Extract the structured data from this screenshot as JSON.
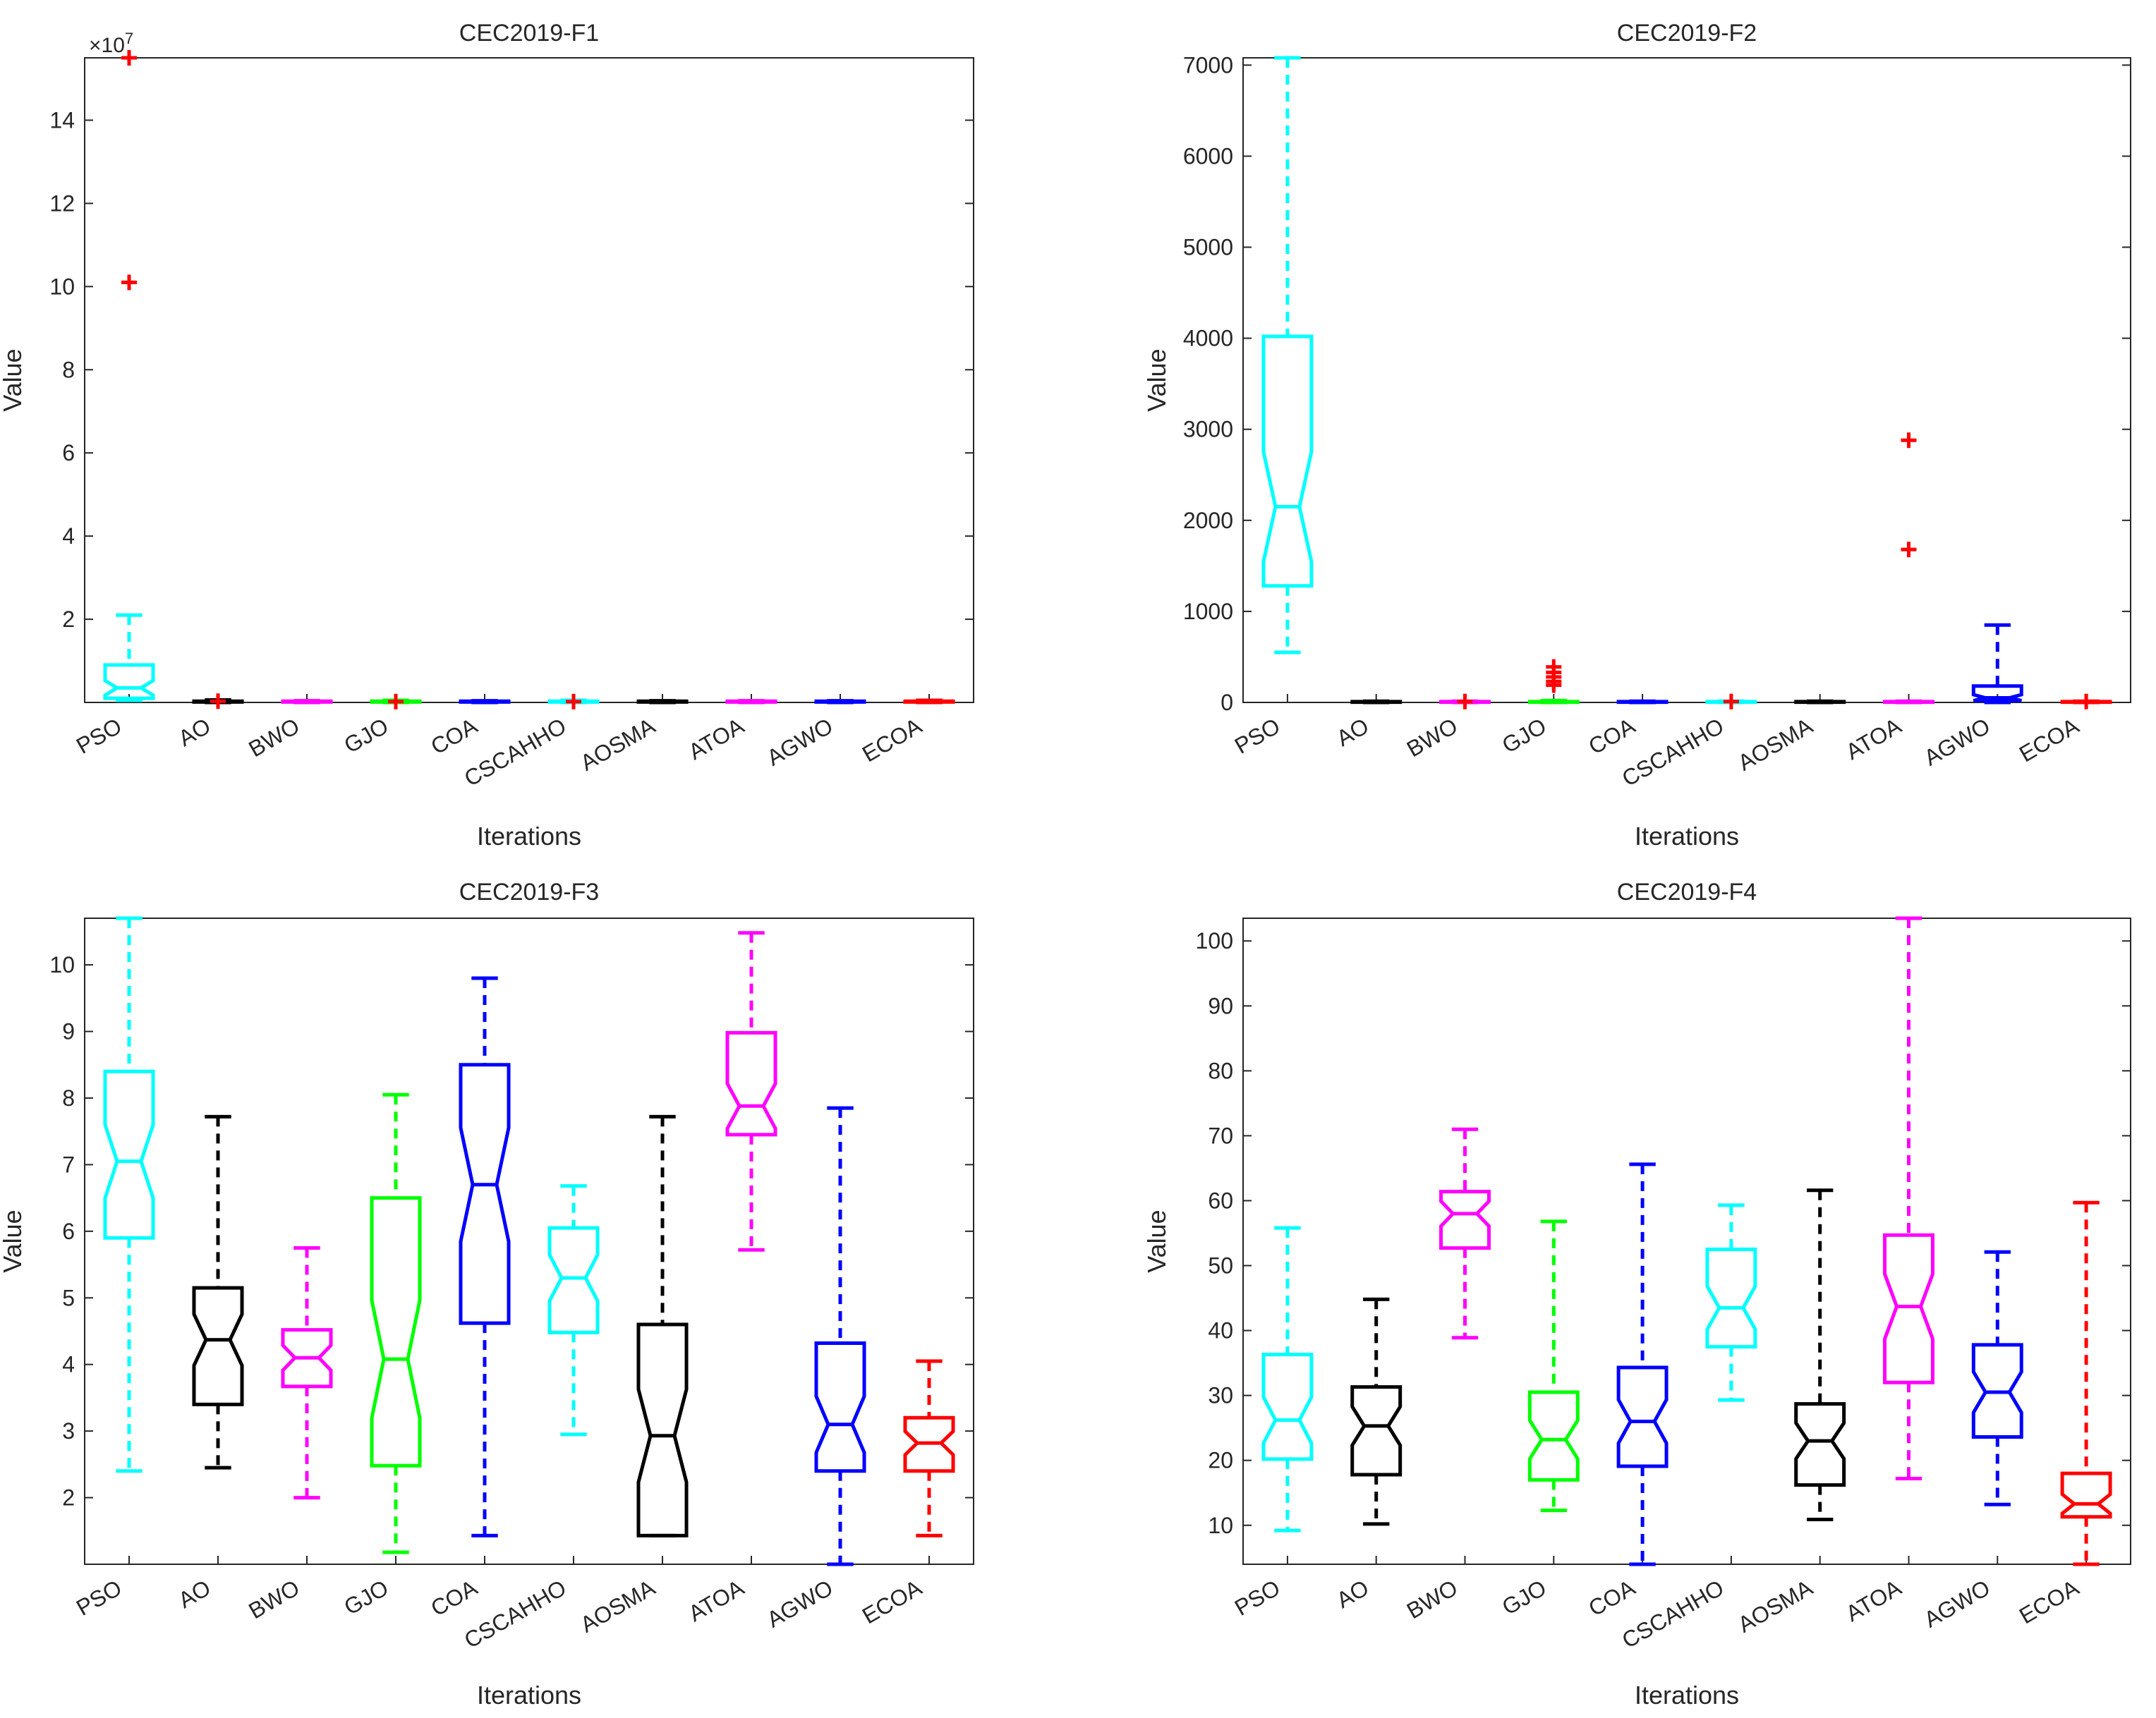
{
  "chart_data": [
    {
      "type": "boxplot",
      "title": "CEC2019-F1",
      "xlabel": "Iterations",
      "ylabel": "Value",
      "exponent_label": "×10^7",
      "exponent_base": "×10",
      "exponent_power": "7",
      "ylim": [
        0,
        15.5
      ],
      "yticks": [
        2,
        4,
        6,
        8,
        10,
        12,
        14
      ],
      "categories": [
        "PSO",
        "AO",
        "BWO",
        "GJO",
        "COA",
        "CSCAHHO",
        "AOSMA",
        "ATOA",
        "AGWO",
        "ECOA"
      ],
      "colors": [
        "#00ffff",
        "#000000",
        "#ff00ff",
        "#00ff00",
        "#0000ff",
        "#00ffff",
        "#000000",
        "#ff00ff",
        "#0000ff",
        "#ff0000"
      ],
      "boxes": [
        {
          "min": 0.05,
          "q1": 0.1,
          "median": 0.35,
          "q3": 0.9,
          "max": 2.1,
          "outliers": [
            10.1,
            15.5
          ]
        },
        {
          "min": 0,
          "q1": 0.01,
          "median": 0.02,
          "q3": 0.03,
          "max": 0.06,
          "outliers": [
            0.03
          ]
        },
        {
          "min": 0,
          "q1": 0.01,
          "median": 0.02,
          "q3": 0.03,
          "max": 0.04,
          "outliers": []
        },
        {
          "min": 0,
          "q1": 0.01,
          "median": 0.02,
          "q3": 0.03,
          "max": 0.05,
          "outliers": [
            0.02
          ]
        },
        {
          "min": 0,
          "q1": 0.01,
          "median": 0.02,
          "q3": 0.03,
          "max": 0.04,
          "outliers": []
        },
        {
          "min": 0,
          "q1": 0.01,
          "median": 0.02,
          "q3": 0.03,
          "max": 0.05,
          "outliers": [
            0.02
          ]
        },
        {
          "min": 0,
          "q1": 0.01,
          "median": 0.02,
          "q3": 0.03,
          "max": 0.04,
          "outliers": []
        },
        {
          "min": 0,
          "q1": 0.01,
          "median": 0.02,
          "q3": 0.03,
          "max": 0.04,
          "outliers": []
        },
        {
          "min": 0,
          "q1": 0.01,
          "median": 0.02,
          "q3": 0.03,
          "max": 0.04,
          "outliers": []
        },
        {
          "min": 0,
          "q1": 0.01,
          "median": 0.02,
          "q3": 0.03,
          "max": 0.05,
          "outliers": []
        }
      ]
    },
    {
      "type": "boxplot",
      "title": "CEC2019-F2",
      "xlabel": "Iterations",
      "ylabel": "Value",
      "ylim": [
        0,
        7080
      ],
      "yticks": [
        0,
        1000,
        2000,
        3000,
        4000,
        5000,
        6000,
        7000
      ],
      "categories": [
        "PSO",
        "AO",
        "BWO",
        "GJO",
        "COA",
        "CSCAHHO",
        "AOSMA",
        "ATOA",
        "AGWO",
        "ECOA"
      ],
      "colors": [
        "#00ffff",
        "#000000",
        "#ff00ff",
        "#00ff00",
        "#0000ff",
        "#00ffff",
        "#000000",
        "#ff00ff",
        "#0000ff",
        "#ff0000"
      ],
      "boxes": [
        {
          "min": 550,
          "q1": 1280,
          "median": 2150,
          "q3": 4020,
          "max": 7080,
          "outliers": []
        },
        {
          "min": 0,
          "q1": 3,
          "median": 6,
          "q3": 9,
          "max": 14,
          "outliers": []
        },
        {
          "min": 0,
          "q1": 3,
          "median": 6,
          "q3": 9,
          "max": 14,
          "outliers": [
            10
          ]
        },
        {
          "min": 0,
          "q1": 3,
          "median": 6,
          "q3": 9,
          "max": 20,
          "outliers": [
            190,
            230,
            280,
            330,
            390
          ]
        },
        {
          "min": 0,
          "q1": 3,
          "median": 6,
          "q3": 9,
          "max": 14,
          "outliers": []
        },
        {
          "min": 0,
          "q1": 3,
          "median": 6,
          "q3": 9,
          "max": 14,
          "outliers": [
            10
          ]
        },
        {
          "min": 0,
          "q1": 3,
          "median": 6,
          "q3": 9,
          "max": 14,
          "outliers": []
        },
        {
          "min": 0,
          "q1": 3,
          "median": 6,
          "q3": 9,
          "max": 14,
          "outliers": [
            1680,
            2880
          ]
        },
        {
          "min": 0,
          "q1": 20,
          "median": 50,
          "q3": 180,
          "max": 850,
          "outliers": []
        },
        {
          "min": 0,
          "q1": 3,
          "median": 6,
          "q3": 9,
          "max": 14,
          "outliers": [
            10
          ]
        }
      ]
    },
    {
      "type": "boxplot",
      "title": "CEC2019-F3",
      "xlabel": "Iterations",
      "ylabel": "Value",
      "ylim": [
        1,
        10.7
      ],
      "yticks": [
        2,
        3,
        4,
        5,
        6,
        7,
        8,
        9,
        10
      ],
      "categories": [
        "PSO",
        "AO",
        "BWO",
        "GJO",
        "COA",
        "CSCAHHO",
        "AOSMA",
        "ATOA",
        "AGWO",
        "ECOA"
      ],
      "colors": [
        "#00ffff",
        "#000000",
        "#ff00ff",
        "#00ff00",
        "#0000ff",
        "#00ffff",
        "#000000",
        "#ff00ff",
        "#0000ff",
        "#ff0000"
      ],
      "boxes": [
        {
          "min": 2.4,
          "q1": 5.9,
          "median": 7.05,
          "q3": 8.4,
          "max": 10.7,
          "outliers": []
        },
        {
          "min": 2.45,
          "q1": 3.4,
          "median": 4.37,
          "q3": 5.15,
          "max": 7.72,
          "outliers": []
        },
        {
          "min": 2.0,
          "q1": 3.67,
          "median": 4.1,
          "q3": 4.52,
          "max": 5.75,
          "outliers": []
        },
        {
          "min": 1.18,
          "q1": 2.48,
          "median": 4.08,
          "q3": 6.5,
          "max": 8.05,
          "outliers": []
        },
        {
          "min": 1.43,
          "q1": 4.62,
          "median": 6.7,
          "q3": 8.5,
          "max": 9.8,
          "outliers": []
        },
        {
          "min": 2.95,
          "q1": 4.48,
          "median": 5.3,
          "q3": 6.05,
          "max": 6.68,
          "outliers": []
        },
        {
          "min": 1.43,
          "q1": 1.43,
          "median": 2.93,
          "q3": 4.6,
          "max": 7.72,
          "outliers": []
        },
        {
          "min": 5.72,
          "q1": 7.45,
          "median": 7.88,
          "q3": 8.98,
          "max": 10.48,
          "outliers": []
        },
        {
          "min": 1.0,
          "q1": 2.4,
          "median": 3.1,
          "q3": 4.32,
          "max": 7.85,
          "outliers": []
        },
        {
          "min": 1.43,
          "q1": 2.4,
          "median": 2.82,
          "q3": 3.2,
          "max": 4.05,
          "outliers": []
        }
      ]
    },
    {
      "type": "boxplot",
      "title": "CEC2019-F4",
      "xlabel": "Iterations",
      "ylabel": "Value",
      "ylim": [
        4,
        103.5
      ],
      "yticks": [
        10,
        20,
        30,
        40,
        50,
        60,
        70,
        80,
        90,
        100
      ],
      "categories": [
        "PSO",
        "AO",
        "BWO",
        "GJO",
        "COA",
        "CSCAHHO",
        "AOSMA",
        "ATOA",
        "AGWO",
        "ECOA"
      ],
      "colors": [
        "#00ffff",
        "#000000",
        "#ff00ff",
        "#00ff00",
        "#0000ff",
        "#00ffff",
        "#000000",
        "#ff00ff",
        "#0000ff",
        "#ff0000"
      ],
      "boxes": [
        {
          "min": 9.2,
          "q1": 20.2,
          "median": 26.2,
          "q3": 36.3,
          "max": 55.8,
          "outliers": []
        },
        {
          "min": 10.2,
          "q1": 17.8,
          "median": 25.3,
          "q3": 31.3,
          "max": 44.8,
          "outliers": []
        },
        {
          "min": 38.9,
          "q1": 52.7,
          "median": 58.0,
          "q3": 61.4,
          "max": 71.0,
          "outliers": []
        },
        {
          "min": 12.3,
          "q1": 17.0,
          "median": 23.2,
          "q3": 30.5,
          "max": 56.8,
          "outliers": []
        },
        {
          "min": 4.0,
          "q1": 19.1,
          "median": 26.0,
          "q3": 34.3,
          "max": 65.6,
          "outliers": []
        },
        {
          "min": 29.3,
          "q1": 37.5,
          "median": 43.5,
          "q3": 52.5,
          "max": 59.3,
          "outliers": []
        },
        {
          "min": 10.9,
          "q1": 16.2,
          "median": 23.0,
          "q3": 28.7,
          "max": 61.6,
          "outliers": []
        },
        {
          "min": 17.2,
          "q1": 32.0,
          "median": 43.7,
          "q3": 54.7,
          "max": 103.5,
          "outliers": []
        },
        {
          "min": 13.2,
          "q1": 23.6,
          "median": 30.5,
          "q3": 37.8,
          "max": 52.1,
          "outliers": []
        },
        {
          "min": 4.0,
          "q1": 11.3,
          "median": 13.3,
          "q3": 18.0,
          "max": 59.7,
          "outliers": []
        }
      ]
    }
  ]
}
